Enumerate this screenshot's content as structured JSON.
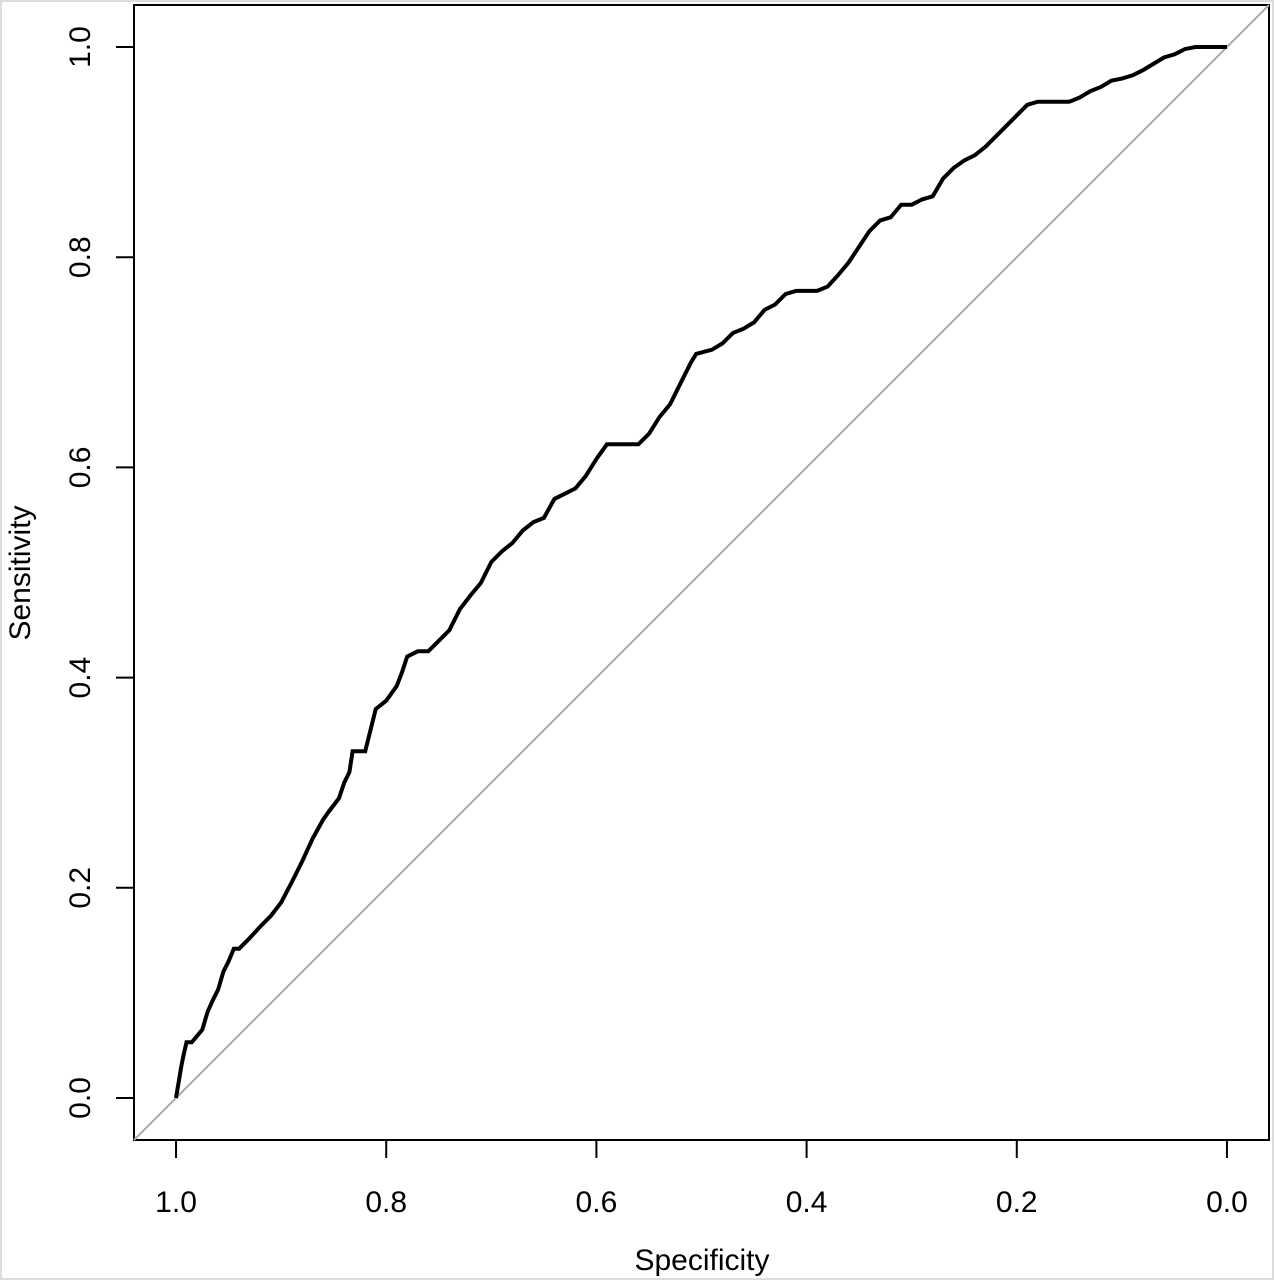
{
  "chart_data": {
    "type": "line",
    "title": "",
    "xlabel": "Specificity",
    "ylabel": "Sensitivity",
    "x_reversed": true,
    "xlim": [
      1.04,
      -0.04
    ],
    "ylim": [
      -0.04,
      1.04
    ],
    "x_ticks": [
      1.0,
      0.8,
      0.6,
      0.4,
      0.2,
      0.0
    ],
    "x_tick_labels": [
      "1.0",
      "0.8",
      "0.6",
      "0.4",
      "0.2",
      "0.0"
    ],
    "y_ticks": [
      0.0,
      0.2,
      0.4,
      0.6,
      0.8,
      1.0
    ],
    "y_tick_labels": [
      "0.0",
      "0.2",
      "0.4",
      "0.6",
      "0.8",
      "1.0"
    ],
    "grid": false,
    "legend": "none",
    "colors": {
      "roc_curve": "#000000",
      "reference_line": "#aaaaaa",
      "axes": "#000000",
      "frame": "#dcdcdc"
    },
    "series": [
      {
        "kind": "roc-curve",
        "x": [
          1.0,
          0.995,
          0.993,
          0.99,
          0.988,
          0.985,
          0.975,
          0.97,
          0.965,
          0.96,
          0.955,
          0.95,
          0.945,
          0.94,
          0.93,
          0.92,
          0.91,
          0.9,
          0.89,
          0.88,
          0.87,
          0.86,
          0.855,
          0.845,
          0.84,
          0.835,
          0.832,
          0.82,
          0.815,
          0.81,
          0.8,
          0.79,
          0.785,
          0.78,
          0.77,
          0.76,
          0.75,
          0.74,
          0.73,
          0.72,
          0.71,
          0.7,
          0.69,
          0.68,
          0.67,
          0.66,
          0.65,
          0.64,
          0.63,
          0.62,
          0.61,
          0.6,
          0.59,
          0.585,
          0.575,
          0.56,
          0.55,
          0.54,
          0.53,
          0.52,
          0.51,
          0.505,
          0.49,
          0.48,
          0.47,
          0.46,
          0.45,
          0.44,
          0.43,
          0.42,
          0.41,
          0.4,
          0.39,
          0.38,
          0.37,
          0.36,
          0.35,
          0.34,
          0.33,
          0.32,
          0.31,
          0.3,
          0.29,
          0.28,
          0.27,
          0.26,
          0.25,
          0.24,
          0.23,
          0.22,
          0.21,
          0.2,
          0.19,
          0.18,
          0.17,
          0.16,
          0.15,
          0.14,
          0.13,
          0.12,
          0.11,
          0.1,
          0.09,
          0.08,
          0.07,
          0.06,
          0.05,
          0.04,
          0.03,
          0.02,
          0.0
        ],
        "y": [
          0.0,
          0.03,
          0.04,
          0.053,
          0.053,
          0.053,
          0.065,
          0.082,
          0.093,
          0.103,
          0.12,
          0.13,
          0.142,
          0.142,
          0.152,
          0.163,
          0.173,
          0.186,
          0.205,
          0.225,
          0.247,
          0.265,
          0.272,
          0.285,
          0.3,
          0.31,
          0.33,
          0.33,
          0.35,
          0.37,
          0.378,
          0.392,
          0.405,
          0.42,
          0.425,
          0.425,
          0.435,
          0.445,
          0.465,
          0.478,
          0.49,
          0.51,
          0.52,
          0.528,
          0.54,
          0.548,
          0.552,
          0.57,
          0.575,
          0.58,
          0.592,
          0.608,
          0.622,
          0.622,
          0.622,
          0.622,
          0.632,
          0.648,
          0.66,
          0.68,
          0.7,
          0.708,
          0.712,
          0.718,
          0.728,
          0.732,
          0.738,
          0.75,
          0.755,
          0.765,
          0.768,
          0.768,
          0.768,
          0.772,
          0.783,
          0.795,
          0.81,
          0.825,
          0.835,
          0.838,
          0.85,
          0.85,
          0.855,
          0.858,
          0.875,
          0.885,
          0.892,
          0.897,
          0.905,
          0.915,
          0.925,
          0.935,
          0.945,
          0.948,
          0.948,
          0.948,
          0.948,
          0.952,
          0.958,
          0.962,
          0.968,
          0.97,
          0.973,
          0.978,
          0.984,
          0.99,
          0.993,
          0.998,
          1.0,
          1.0,
          1.0
        ]
      },
      {
        "kind": "reference-diagonal",
        "x": [
          1.04,
          -0.04
        ],
        "y": [
          -0.04,
          1.04
        ]
      }
    ]
  }
}
